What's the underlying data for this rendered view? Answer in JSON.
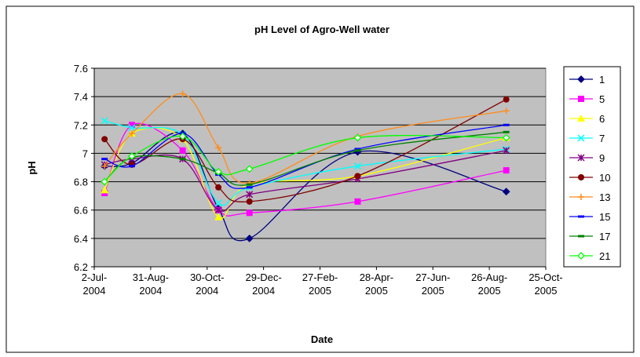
{
  "chart_data": {
    "type": "line",
    "title": "pH Level of Agro-Well water",
    "x_label": "Date",
    "y_label": "pH",
    "x": [
      "2004-07-13",
      "2004-08-11",
      "2004-10-04",
      "2004-11-11",
      "2004-12-14",
      "2005-04-08",
      "2005-09-13"
    ],
    "xlim": [
      "2004-07-02",
      "2005-10-25"
    ],
    "xticks": [
      {
        "value": "2004-07-02",
        "label": "2-Jul-2004"
      },
      {
        "value": "2004-08-31",
        "label": "31-Aug-2004"
      },
      {
        "value": "2004-10-30",
        "label": "30-Oct-2004"
      },
      {
        "value": "2004-12-29",
        "label": "29-Dec-2004"
      },
      {
        "value": "2005-02-27",
        "label": "27-Feb-2005"
      },
      {
        "value": "2005-04-28",
        "label": "28-Apr-2005"
      },
      {
        "value": "2005-06-27",
        "label": "27-Jun-2005"
      },
      {
        "value": "2005-08-26",
        "label": "26-Aug-2005"
      },
      {
        "value": "2005-10-25",
        "label": "25-Oct-2005"
      }
    ],
    "ylim": [
      6.2,
      7.6
    ],
    "yticks": [
      {
        "value": 6.2,
        "label": "6.2"
      },
      {
        "value": 6.4,
        "label": "6.4"
      },
      {
        "value": 6.6,
        "label": "6.6"
      },
      {
        "value": 6.8,
        "label": "6.8"
      },
      {
        "value": 7,
        "label": "7"
      },
      {
        "value": 7.2,
        "label": "7.2"
      },
      {
        "value": 7.4,
        "label": "7.4"
      },
      {
        "value": 7.6,
        "label": "7.6"
      }
    ],
    "grid": true,
    "smooth": true,
    "legend": "right",
    "series": [
      {
        "name": "1",
        "color": "#000080",
        "marker": "diamond",
        "values": [
          6.91,
          6.93,
          7.14,
          6.61,
          6.4,
          7.01,
          6.73
        ]
      },
      {
        "name": "5",
        "color": "#ff00ff",
        "marker": "square",
        "values": [
          6.72,
          7.2,
          7.02,
          6.6,
          6.58,
          6.66,
          6.88
        ]
      },
      {
        "name": "6",
        "color": "#ffff00",
        "marker": "triangle",
        "values": [
          6.74,
          7.14,
          7.1,
          6.55,
          6.78,
          6.84,
          7.11
        ]
      },
      {
        "name": "7",
        "color": "#00ffff",
        "marker": "x",
        "values": [
          7.23,
          7.18,
          7.13,
          6.65,
          6.76,
          6.91,
          7.03
        ]
      },
      {
        "name": "9",
        "color": "#800080",
        "marker": "star",
        "values": [
          6.92,
          6.96,
          6.96,
          6.6,
          6.71,
          6.82,
          7.02
        ]
      },
      {
        "name": "10",
        "color": "#800000",
        "marker": "circle",
        "values": [
          7.1,
          6.92,
          7.1,
          6.76,
          6.66,
          6.84,
          7.38
        ]
      },
      {
        "name": "13",
        "color": "#ff8c1a",
        "marker": "plus",
        "values": [
          6.91,
          7.14,
          7.42,
          7.04,
          6.79,
          7.12,
          7.3
        ]
      },
      {
        "name": "15",
        "color": "#0000ff",
        "marker": "dash",
        "values": [
          6.96,
          6.91,
          7.14,
          6.85,
          6.76,
          7.03,
          7.2
        ]
      },
      {
        "name": "17",
        "color": "#008000",
        "marker": "dash",
        "values": [
          6.8,
          6.97,
          6.96,
          6.86,
          6.78,
          7.02,
          7.15
        ]
      },
      {
        "name": "21",
        "color": "#00ff00",
        "marker": "open-diamond",
        "values": [
          6.8,
          6.98,
          7.12,
          6.87,
          6.89,
          7.11,
          7.11
        ]
      }
    ]
  }
}
